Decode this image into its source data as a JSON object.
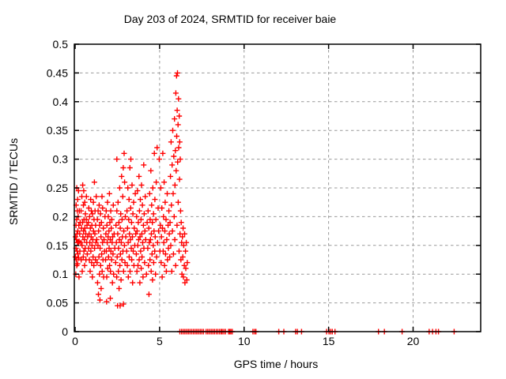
{
  "chart_data": {
    "type": "scatter",
    "title": "Day 203 of 2024, SRMTID for receiver baie",
    "xlabel": "GPS time / hours",
    "ylabel": "SRMTID / TECUs",
    "xlim": [
      0,
      24
    ],
    "ylim": [
      0,
      0.5
    ],
    "xticks": [
      0,
      5,
      10,
      15,
      20
    ],
    "yticks": [
      0,
      0.05,
      0.1,
      0.15,
      0.2,
      0.25,
      0.3,
      0.35,
      0.4,
      0.45,
      0.5
    ],
    "grid": true,
    "legend": "none",
    "marker": "+",
    "marker_color": "#ff0000",
    "grid_color": "#999999",
    "axis_color": "#000000",
    "marker_size": 7,
    "points": [
      [
        0.02,
        0.13
      ],
      [
        0.03,
        0.165
      ],
      [
        0.04,
        0.1
      ],
      [
        0.05,
        0.185
      ],
      [
        0.05,
        0.145
      ],
      [
        0.06,
        0.22
      ],
      [
        0.07,
        0.125
      ],
      [
        0.08,
        0.16
      ],
      [
        0.09,
        0.195
      ],
      [
        0.1,
        0.115
      ],
      [
        0.1,
        0.25
      ],
      [
        0.11,
        0.17
      ],
      [
        0.12,
        0.14
      ],
      [
        0.13,
        0.21
      ],
      [
        0.14,
        0.155
      ],
      [
        0.15,
        0.118
      ],
      [
        0.15,
        0.23
      ],
      [
        0.16,
        0.175
      ],
      [
        0.17,
        0.135
      ],
      [
        0.18,
        0.2
      ],
      [
        0.19,
        0.155
      ],
      [
        0.2,
        0.245
      ],
      [
        0.21,
        0.128
      ],
      [
        0.22,
        0.185
      ],
      [
        0.23,
        0.095
      ],
      [
        0.24,
        0.157
      ],
      [
        0.25,
        0.21
      ],
      [
        0.27,
        0.17
      ],
      [
        0.28,
        0.14
      ],
      [
        0.3,
        0.19
      ],
      [
        0.33,
        0.155
      ],
      [
        0.35,
        0.21
      ],
      [
        0.36,
        0.125
      ],
      [
        0.38,
        0.18
      ],
      [
        0.4,
        0.235
      ],
      [
        0.41,
        0.15
      ],
      [
        0.42,
        0.105
      ],
      [
        0.44,
        0.19
      ],
      [
        0.45,
        0.255
      ],
      [
        0.46,
        0.165
      ],
      [
        0.48,
        0.13
      ],
      [
        0.49,
        0.22
      ],
      [
        0.5,
        0.175
      ],
      [
        0.51,
        0.245
      ],
      [
        0.52,
        0.14
      ],
      [
        0.53,
        0.195
      ],
      [
        0.55,
        0.16
      ],
      [
        0.56,
        0.115
      ],
      [
        0.57,
        0.225
      ],
      [
        0.58,
        0.18
      ],
      [
        0.6,
        0.145
      ],
      [
        0.61,
        0.205
      ],
      [
        0.63,
        0.17
      ],
      [
        0.64,
        0.125
      ],
      [
        0.66,
        0.195
      ],
      [
        0.67,
        0.235
      ],
      [
        0.69,
        0.155
      ],
      [
        0.7,
        0.185
      ],
      [
        0.72,
        0.135
      ],
      [
        0.74,
        0.165
      ],
      [
        0.78,
        0.19
      ],
      [
        0.8,
        0.145
      ],
      [
        0.81,
        0.215
      ],
      [
        0.83,
        0.17
      ],
      [
        0.84,
        0.125
      ],
      [
        0.86,
        0.2
      ],
      [
        0.87,
        0.155
      ],
      [
        0.89,
        0.105
      ],
      [
        0.9,
        0.18
      ],
      [
        0.92,
        0.23
      ],
      [
        0.93,
        0.14
      ],
      [
        0.95,
        0.165
      ],
      [
        0.96,
        0.21
      ],
      [
        0.98,
        0.12
      ],
      [
        0.99,
        0.185
      ],
      [
        1.0,
        0.15
      ],
      [
        1.02,
        0.095
      ],
      [
        1.03,
        0.205
      ],
      [
        1.05,
        0.16
      ],
      [
        1.06,
        0.13
      ],
      [
        1.08,
        0.225
      ],
      [
        1.09,
        0.175
      ],
      [
        1.11,
        0.115
      ],
      [
        1.12,
        0.195
      ],
      [
        1.14,
        0.26
      ],
      [
        1.15,
        0.145
      ],
      [
        1.17,
        0.17
      ],
      [
        1.18,
        0.21
      ],
      [
        1.2,
        0.125
      ],
      [
        1.21,
        0.185
      ],
      [
        1.23,
        0.155
      ],
      [
        1.25,
        0.235
      ],
      [
        1.28,
        0.16
      ],
      [
        1.3,
        0.12
      ],
      [
        1.32,
        0.195
      ],
      [
        1.33,
        0.085
      ],
      [
        1.35,
        0.15
      ],
      [
        1.36,
        0.21
      ],
      [
        1.38,
        0.065
      ],
      [
        1.39,
        0.175
      ],
      [
        1.41,
        0.13
      ],
      [
        1.42,
        0.22
      ],
      [
        1.44,
        0.1
      ],
      [
        1.45,
        0.185
      ],
      [
        1.47,
        0.055
      ],
      [
        1.48,
        0.145
      ],
      [
        1.5,
        0.205
      ],
      [
        1.51,
        0.115
      ],
      [
        1.53,
        0.165
      ],
      [
        1.54,
        0.075
      ],
      [
        1.56,
        0.19
      ],
      [
        1.57,
        0.135
      ],
      [
        1.59,
        0.235
      ],
      [
        1.6,
        0.105
      ],
      [
        1.62,
        0.155
      ],
      [
        1.63,
        0.215
      ],
      [
        1.65,
        0.125
      ],
      [
        1.67,
        0.18
      ],
      [
        1.69,
        0.095
      ],
      [
        1.71,
        0.16
      ],
      [
        1.74,
        0.14
      ],
      [
        1.77,
        0.2
      ],
      [
        1.8,
        0.125
      ],
      [
        1.82,
        0.17
      ],
      [
        1.84,
        0.21
      ],
      [
        1.85,
        0.14
      ],
      [
        1.86,
        0.052
      ],
      [
        1.87,
        0.095
      ],
      [
        1.88,
        0.185
      ],
      [
        1.9,
        0.155
      ],
      [
        1.92,
        0.225
      ],
      [
        1.93,
        0.11
      ],
      [
        1.95,
        0.165
      ],
      [
        1.96,
        0.2
      ],
      [
        1.98,
        0.13
      ],
      [
        2.0,
        0.175
      ],
      [
        2.01,
        0.145
      ],
      [
        2.03,
        0.24
      ],
      [
        2.04,
        0.115
      ],
      [
        2.06,
        0.19
      ],
      [
        2.08,
        0.058
      ],
      [
        2.08,
        0.16
      ],
      [
        2.09,
        0.105
      ],
      [
        2.11,
        0.21
      ],
      [
        2.12,
        0.14
      ],
      [
        2.14,
        0.18
      ],
      [
        2.16,
        0.125
      ],
      [
        2.17,
        0.195
      ],
      [
        2.19,
        0.155
      ],
      [
        2.21,
        0.085
      ],
      [
        2.22,
        0.165
      ],
      [
        2.24,
        0.135
      ],
      [
        2.26,
        0.22
      ],
      [
        2.28,
        0.1
      ],
      [
        2.31,
        0.17
      ],
      [
        2.35,
        0.145
      ],
      [
        2.4,
        0.12
      ],
      [
        2.42,
        0.185
      ],
      [
        2.44,
        0.155
      ],
      [
        2.46,
        0.095
      ],
      [
        2.47,
        0.21
      ],
      [
        2.47,
        0.3
      ],
      [
        2.49,
        0.13
      ],
      [
        2.51,
        0.045
      ],
      [
        2.52,
        0.17
      ],
      [
        2.54,
        0.225
      ],
      [
        2.56,
        0.105
      ],
      [
        2.57,
        0.145
      ],
      [
        2.59,
        0.19
      ],
      [
        2.6,
        0.075
      ],
      [
        2.62,
        0.16
      ],
      [
        2.64,
        0.25
      ],
      [
        2.65,
        0.115
      ],
      [
        2.66,
        0.045
      ],
      [
        2.67,
        0.18
      ],
      [
        2.68,
        0.135
      ],
      [
        2.7,
        0.205
      ],
      [
        2.72,
        0.09
      ],
      [
        2.73,
        0.155
      ],
      [
        2.75,
        0.27
      ],
      [
        2.77,
        0.125
      ],
      [
        2.78,
        0.195
      ],
      [
        2.8,
        0.165
      ],
      [
        2.82,
        0.235
      ],
      [
        2.83,
        0.14
      ],
      [
        2.85,
        0.285
      ],
      [
        2.86,
        0.048
      ],
      [
        2.87,
        0.105
      ],
      [
        2.88,
        0.175
      ],
      [
        2.9,
        0.31
      ],
      [
        2.92,
        0.15
      ],
      [
        2.93,
        0.26
      ],
      [
        2.95,
        0.12
      ],
      [
        2.97,
        0.2
      ],
      [
        3.0,
        0.165
      ],
      [
        3.05,
        0.14
      ],
      [
        3.07,
        0.21
      ],
      [
        3.09,
        0.115
      ],
      [
        3.1,
        0.18
      ],
      [
        3.12,
        0.25
      ],
      [
        3.14,
        0.155
      ],
      [
        3.15,
        0.095
      ],
      [
        3.17,
        0.195
      ],
      [
        3.19,
        0.23
      ],
      [
        3.2,
        0.13
      ],
      [
        3.22,
        0.17
      ],
      [
        3.24,
        0.285
      ],
      [
        3.25,
        0.105
      ],
      [
        3.27,
        0.16
      ],
      [
        3.29,
        0.215
      ],
      [
        3.3,
        0.3
      ],
      [
        3.32,
        0.145
      ],
      [
        3.34,
        0.19
      ],
      [
        3.35,
        0.125
      ],
      [
        3.37,
        0.255
      ],
      [
        3.39,
        0.165
      ],
      [
        3.4,
        0.085
      ],
      [
        3.42,
        0.205
      ],
      [
        3.44,
        0.14
      ],
      [
        3.46,
        0.225
      ],
      [
        3.48,
        0.115
      ],
      [
        3.5,
        0.18
      ],
      [
        3.53,
        0.15
      ],
      [
        3.56,
        0.24
      ],
      [
        3.59,
        0.17
      ],
      [
        3.62,
        0.135
      ],
      [
        3.64,
        0.2
      ],
      [
        3.66,
        0.105
      ],
      [
        3.67,
        0.175
      ],
      [
        3.69,
        0.245
      ],
      [
        3.71,
        0.15
      ],
      [
        3.72,
        0.115
      ],
      [
        3.74,
        0.19
      ],
      [
        3.76,
        0.16
      ],
      [
        3.78,
        0.27
      ],
      [
        3.79,
        0.125
      ],
      [
        3.81,
        0.21
      ],
      [
        3.83,
        0.085
      ],
      [
        3.84,
        0.165
      ],
      [
        3.86,
        0.23
      ],
      [
        3.88,
        0.14
      ],
      [
        3.9,
        0.195
      ],
      [
        3.91,
        0.11
      ],
      [
        3.93,
        0.255
      ],
      [
        3.95,
        0.17
      ],
      [
        3.96,
        0.13
      ],
      [
        3.98,
        0.22
      ],
      [
        4.0,
        0.155
      ],
      [
        4.02,
        0.095
      ],
      [
        4.04,
        0.185
      ],
      [
        4.06,
        0.29
      ],
      [
        4.07,
        0.145
      ],
      [
        4.09,
        0.205
      ],
      [
        4.11,
        0.12
      ],
      [
        4.13,
        0.175
      ],
      [
        4.15,
        0.235
      ],
      [
        4.18,
        0.16
      ],
      [
        4.22,
        0.1
      ],
      [
        4.26,
        0.19
      ],
      [
        4.3,
        0.145
      ],
      [
        4.32,
        0.21
      ],
      [
        4.34,
        0.115
      ],
      [
        4.36,
        0.18
      ],
      [
        4.37,
        0.065
      ],
      [
        4.39,
        0.155
      ],
      [
        4.41,
        0.24
      ],
      [
        4.43,
        0.125
      ],
      [
        4.44,
        0.195
      ],
      [
        4.46,
        0.16
      ],
      [
        4.48,
        0.28
      ],
      [
        4.5,
        0.105
      ],
      [
        4.51,
        0.17
      ],
      [
        4.53,
        0.22
      ],
      [
        4.55,
        0.135
      ],
      [
        4.57,
        0.19
      ],
      [
        4.58,
        0.09
      ],
      [
        4.6,
        0.25
      ],
      [
        4.62,
        0.15
      ],
      [
        4.64,
        0.205
      ],
      [
        4.65,
        0.12
      ],
      [
        4.67,
        0.175
      ],
      [
        4.69,
        0.31
      ],
      [
        4.71,
        0.14
      ],
      [
        4.72,
        0.23
      ],
      [
        4.74,
        0.165
      ],
      [
        4.76,
        0.1
      ],
      [
        4.78,
        0.195
      ],
      [
        4.8,
        0.26
      ],
      [
        4.82,
        0.13
      ],
      [
        4.85,
        0.32
      ],
      [
        4.88,
        0.155
      ],
      [
        4.91,
        0.215
      ],
      [
        4.94,
        0.175
      ],
      [
        4.98,
        0.3
      ],
      [
        5.02,
        0.14
      ],
      [
        5.05,
        0.185
      ],
      [
        5.07,
        0.25
      ],
      [
        5.09,
        0.12
      ],
      [
        5.11,
        0.165
      ],
      [
        5.13,
        0.215
      ],
      [
        5.15,
        0.095
      ],
      [
        5.17,
        0.18
      ],
      [
        5.19,
        0.31
      ],
      [
        5.21,
        0.14
      ],
      [
        5.23,
        0.2
      ],
      [
        5.25,
        0.155
      ],
      [
        5.27,
        0.26
      ],
      [
        5.29,
        0.115
      ],
      [
        5.31,
        0.175
      ],
      [
        5.33,
        0.225
      ],
      [
        5.35,
        0.135
      ],
      [
        5.38,
        0.195
      ],
      [
        5.4,
        0.105
      ],
      [
        5.42,
        0.16
      ],
      [
        5.45,
        0.24
      ],
      [
        5.47,
        0.125
      ],
      [
        5.5,
        0.185
      ],
      [
        5.52,
        0.145
      ],
      [
        5.55,
        0.21
      ],
      [
        5.57,
        0.17
      ],
      [
        5.6,
        0.13
      ],
      [
        5.62,
        0.19
      ],
      [
        5.64,
        0.27
      ],
      [
        5.66,
        0.15
      ],
      [
        5.68,
        0.33
      ],
      [
        5.7,
        0.22
      ],
      [
        5.72,
        0.105
      ],
      [
        5.74,
        0.29
      ],
      [
        5.76,
        0.175
      ],
      [
        5.78,
        0.35
      ],
      [
        5.8,
        0.24
      ],
      [
        5.82,
        0.135
      ],
      [
        5.84,
        0.305
      ],
      [
        5.86,
        0.2
      ],
      [
        5.88,
        0.37
      ],
      [
        5.9,
        0.16
      ],
      [
        5.91,
        0.255
      ],
      [
        5.93,
        0.315
      ],
      [
        5.95,
        0.115
      ],
      [
        5.96,
        0.415
      ],
      [
        5.98,
        0.28
      ],
      [
        6.0,
        0.445
      ],
      [
        6.01,
        0.34
      ],
      [
        6.03,
        0.185
      ],
      [
        6.04,
        0.385
      ],
      [
        6.06,
        0.45
      ],
      [
        6.07,
        0.295
      ],
      [
        6.09,
        0.36
      ],
      [
        6.1,
        0.225
      ],
      [
        6.12,
        0.405
      ],
      [
        6.13,
        0.32
      ],
      [
        6.15,
        0.14
      ],
      [
        6.16,
        0.375
      ],
      [
        6.18,
        0.265
      ],
      [
        6.19,
        0.33
      ],
      [
        6.21,
        0.17
      ],
      [
        6.22,
        0.3
      ],
      [
        6.24,
        0.21
      ],
      [
        6.26,
        0.125
      ],
      [
        6.28,
        0.19
      ],
      [
        6.3,
        0.155
      ],
      [
        6.32,
        0.1
      ],
      [
        6.35,
        0.165
      ],
      [
        6.37,
        0.13
      ],
      [
        6.39,
        0.18
      ],
      [
        6.41,
        0.095
      ],
      [
        6.43,
        0.15
      ],
      [
        6.46,
        0.115
      ],
      [
        6.48,
        0.17
      ],
      [
        6.5,
        0.085
      ],
      [
        6.53,
        0.14
      ],
      [
        6.55,
        0.11
      ],
      [
        6.58,
        0.155
      ],
      [
        6.61,
        0.09
      ],
      [
        6.64,
        0.12
      ],
      [
        6.2,
        0
      ],
      [
        6.3,
        0
      ],
      [
        6.4,
        0
      ],
      [
        6.5,
        0
      ],
      [
        6.6,
        0
      ],
      [
        6.7,
        0
      ],
      [
        6.8,
        0
      ],
      [
        6.9,
        0
      ],
      [
        7.0,
        0
      ],
      [
        7.1,
        0
      ],
      [
        7.2,
        0
      ],
      [
        7.3,
        0
      ],
      [
        7.4,
        0
      ],
      [
        7.5,
        0
      ],
      [
        7.6,
        0
      ],
      [
        7.75,
        0
      ],
      [
        7.85,
        0
      ],
      [
        7.95,
        0
      ],
      [
        8.05,
        0
      ],
      [
        8.15,
        0
      ],
      [
        8.25,
        0
      ],
      [
        8.35,
        0
      ],
      [
        8.45,
        0
      ],
      [
        8.55,
        0
      ],
      [
        8.65,
        0
      ],
      [
        8.7,
        0
      ],
      [
        8.8,
        0
      ],
      [
        8.9,
        0
      ],
      [
        9.08,
        0
      ],
      [
        9.15,
        0
      ],
      [
        9.22,
        0
      ],
      [
        9.3,
        0
      ],
      [
        10.52,
        0
      ],
      [
        10.62,
        0
      ],
      [
        10.7,
        0
      ],
      [
        12.05,
        0
      ],
      [
        12.35,
        0
      ],
      [
        13.05,
        0
      ],
      [
        13.15,
        0
      ],
      [
        13.4,
        0
      ],
      [
        14.88,
        0
      ],
      [
        15.02,
        0
      ],
      [
        15.12,
        0
      ],
      [
        15.22,
        0
      ],
      [
        15.38,
        0
      ],
      [
        17.95,
        0
      ],
      [
        18.3,
        0
      ],
      [
        19.35,
        0
      ],
      [
        20.95,
        0
      ],
      [
        21.15,
        0
      ],
      [
        21.35,
        0
      ],
      [
        21.5,
        0
      ],
      [
        22.43,
        0
      ]
    ]
  }
}
